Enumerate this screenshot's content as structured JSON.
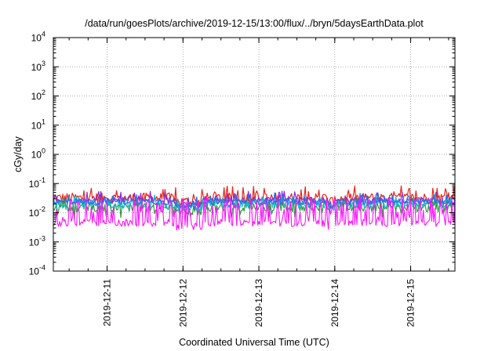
{
  "chart_data": {
    "type": "line",
    "title": "/data/run/goesPlots/archive/2019-12-15/13:00/flux/../bryn/5daysEarthData.plot",
    "xlabel": "Coordinated Universal Time (UTC)",
    "ylabel": "cGy/day",
    "y_scale": "log",
    "ylim": [
      0.0001,
      10000
    ],
    "y_ticks": [
      {
        "value": 0.0001,
        "base": "10",
        "exp": "-4"
      },
      {
        "value": 0.001,
        "base": "10",
        "exp": "-3"
      },
      {
        "value": 0.01,
        "base": "10",
        "exp": "-2"
      },
      {
        "value": 0.1,
        "base": "10",
        "exp": "-1"
      },
      {
        "value": 1,
        "base": "10",
        "exp": "0"
      },
      {
        "value": 10,
        "base": "10",
        "exp": "1"
      },
      {
        "value": 100,
        "base": "10",
        "exp": "2"
      },
      {
        "value": 1000,
        "base": "10",
        "exp": "3"
      },
      {
        "value": 10000,
        "base": "10",
        "exp": "4"
      }
    ],
    "xlim": [
      "2019-12-10 07:00",
      "2019-12-15 14:00"
    ],
    "x_ticks": [
      {
        "value": "2019-12-11 00:00",
        "label": "2019-12-11"
      },
      {
        "value": "2019-12-12 00:00",
        "label": "2019-12-12"
      },
      {
        "value": "2019-12-13 00:00",
        "label": "2019-12-13"
      },
      {
        "value": "2019-12-14 00:00",
        "label": "2019-12-14"
      },
      {
        "value": "2019-12-15 00:00",
        "label": "2019-12-15"
      }
    ],
    "grid": true,
    "legend": "none",
    "series_style": [
      {
        "color": "#e8241c",
        "base": 0.032,
        "spread": 0.35,
        "spikes_up": 0.06
      },
      {
        "color": "#8c2ad8",
        "base": 0.026,
        "spread": 0.25,
        "spikes_up": 0.04
      },
      {
        "color": "#2e9a3c",
        "base": 0.016,
        "spread": 0.35,
        "spikes_up": 0.025
      },
      {
        "color": "#17bcd0",
        "base": 0.02,
        "spread": 0.3,
        "spikes_up": 0.03
      },
      {
        "color": "#2a6fe8",
        "base": 0.024,
        "spread": 0.22,
        "spikes_up": 0.035
      },
      {
        "color": "#ff10ff",
        "base": 0.0045,
        "spread": 0.25,
        "spikes_up": 0.025
      }
    ],
    "dips": [
      {
        "from": "2019-12-11 22:00",
        "to": "2019-12-12 06:00"
      },
      {
        "from": "2019-12-13 22:00",
        "to": "2019-12-14 00:00"
      }
    ]
  }
}
